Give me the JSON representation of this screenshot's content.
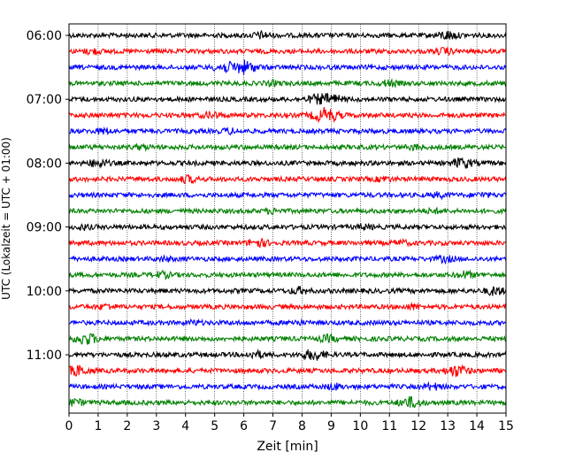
{
  "chart_data": {
    "type": "line",
    "title": "",
    "xlabel": "Zeit  [min]",
    "ylabel": "UTC (Lokalzeit = UTC + 01:00)",
    "xlim": [
      0,
      15
    ],
    "x_ticks": [
      "0",
      "1",
      "2",
      "3",
      "4",
      "5",
      "6",
      "7",
      "8",
      "9",
      "10",
      "11",
      "12",
      "13",
      "14",
      "15"
    ],
    "y_tick_labels": [
      "06:00",
      "07:00",
      "08:00",
      "09:00",
      "10:00",
      "11:00"
    ],
    "y_tick_rows": [
      0,
      4,
      8,
      12,
      16,
      20
    ],
    "grid": "vertical dotted lines at each minute",
    "trace_interval_min": 15,
    "trace_colors": [
      "#000000",
      "#ff0000",
      "#0000ff",
      "#008000"
    ],
    "traces": [
      {
        "start": "06:00",
        "events": [
          [
            6.6,
            0.9
          ],
          [
            13.0,
            1.2
          ]
        ]
      },
      {
        "start": "06:15",
        "events": [
          [
            0.8,
            0.7
          ],
          [
            12.9,
            0.8
          ]
        ]
      },
      {
        "start": "06:30",
        "events": [
          [
            6.0,
            1.9
          ],
          [
            5.3,
            1.2
          ]
        ]
      },
      {
        "start": "06:45",
        "events": [
          [
            11.0,
            0.8
          ],
          [
            7.0,
            0.6
          ]
        ]
      },
      {
        "start": "07:00",
        "events": [
          [
            9.0,
            1.3
          ],
          [
            8.5,
            1.1
          ]
        ]
      },
      {
        "start": "07:15",
        "events": [
          [
            8.8,
            2.1
          ],
          [
            4.9,
            0.9
          ]
        ]
      },
      {
        "start": "07:30",
        "events": [
          [
            1.2,
            0.7
          ],
          [
            5.5,
            0.6
          ]
        ]
      },
      {
        "start": "07:45",
        "events": [
          [
            11.9,
            0.6
          ],
          [
            2.5,
            0.5
          ]
        ]
      },
      {
        "start": "08:00",
        "events": [
          [
            13.5,
            1.4
          ],
          [
            1.0,
            1.1
          ]
        ]
      },
      {
        "start": "08:15",
        "events": [
          [
            4.1,
            0.9
          ],
          [
            10.8,
            0.6
          ]
        ]
      },
      {
        "start": "08:30",
        "events": [
          [
            12.7,
            0.6
          ],
          [
            14.2,
            0.5
          ]
        ]
      },
      {
        "start": "08:45",
        "events": [
          [
            7.0,
            0.6
          ],
          [
            12.5,
            0.5
          ]
        ]
      },
      {
        "start": "09:00",
        "events": [
          [
            0.5,
            0.6
          ],
          [
            10.2,
            0.5
          ]
        ]
      },
      {
        "start": "09:15",
        "events": [
          [
            6.5,
            1.1
          ],
          [
            11.4,
            0.6
          ]
        ]
      },
      {
        "start": "09:30",
        "events": [
          [
            12.9,
            0.8
          ],
          [
            3.3,
            0.5
          ]
        ]
      },
      {
        "start": "09:45",
        "events": [
          [
            3.2,
            0.8
          ],
          [
            13.6,
            0.9
          ]
        ]
      },
      {
        "start": "10:00",
        "events": [
          [
            14.6,
            1.1
          ],
          [
            7.9,
            0.9
          ]
        ]
      },
      {
        "start": "10:15",
        "events": [
          [
            1.3,
            0.6
          ],
          [
            11.8,
            0.6
          ]
        ]
      },
      {
        "start": "10:30",
        "events": [
          [
            7.8,
            0.5
          ],
          [
            4.3,
            0.5
          ]
        ]
      },
      {
        "start": "10:45",
        "events": [
          [
            0.6,
            1.6
          ],
          [
            8.9,
            0.9
          ]
        ]
      },
      {
        "start": "11:00",
        "events": [
          [
            8.4,
            1.5
          ],
          [
            6.4,
            0.9
          ]
        ]
      },
      {
        "start": "11:15",
        "events": [
          [
            0.3,
            1.4
          ],
          [
            13.3,
            1.6
          ]
        ]
      },
      {
        "start": "11:30",
        "events": [
          [
            9.1,
            0.8
          ],
          [
            12.5,
            0.8
          ]
        ]
      },
      {
        "start": "11:45",
        "events": [
          [
            11.7,
            1.5
          ],
          [
            0.2,
            0.9
          ]
        ]
      }
    ]
  }
}
